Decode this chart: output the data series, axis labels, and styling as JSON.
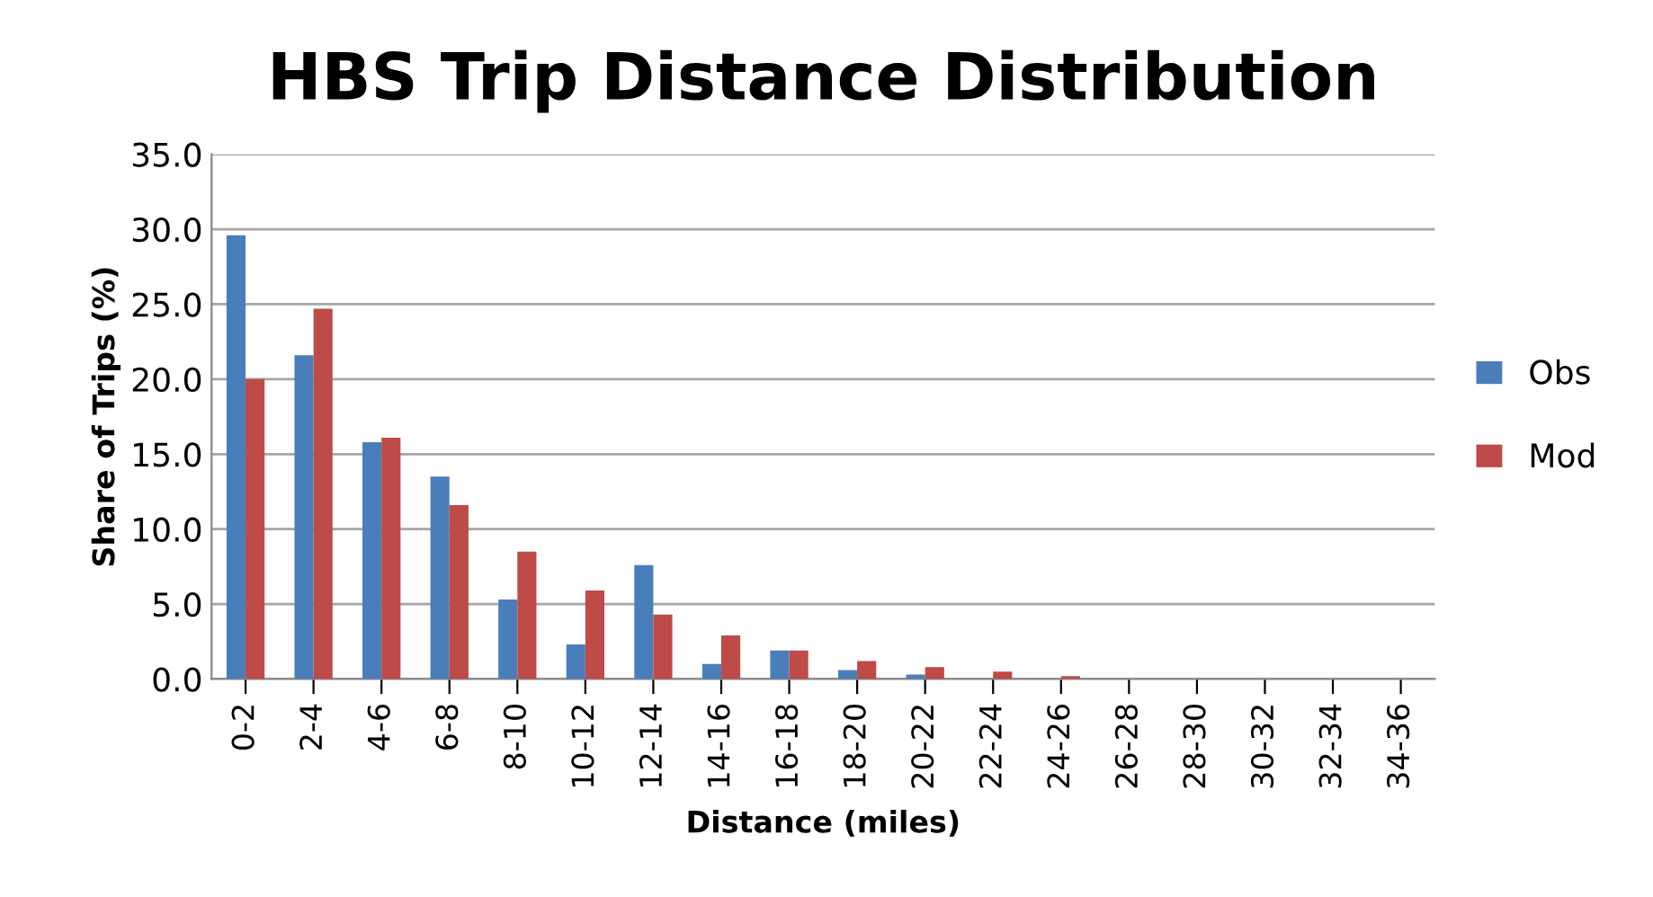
{
  "chart_data": {
    "type": "bar",
    "title": "HBS Trip Distance Distribution",
    "xlabel": "Distance (miles)",
    "ylabel": "Share of Trips (%)",
    "categories": [
      "0-2",
      "2-4",
      "4-6",
      "6-8",
      "8-10",
      "10-12",
      "12-14",
      "14-16",
      "16-18",
      "18-20",
      "20-22",
      "22-24",
      "24-26",
      "26-28",
      "28-30",
      "30-32",
      "32-34",
      "34-36"
    ],
    "series": [
      {
        "name": "Obs",
        "color": "#4a7ebb",
        "values": [
          29.6,
          21.6,
          15.8,
          13.5,
          5.3,
          2.3,
          7.6,
          1.0,
          1.9,
          0.6,
          0.3,
          0,
          0,
          0,
          0,
          0,
          0,
          0
        ]
      },
      {
        "name": "Mod",
        "color": "#be4b48",
        "values": [
          20.0,
          24.7,
          16.1,
          11.6,
          8.5,
          5.9,
          4.3,
          2.9,
          1.9,
          1.2,
          0.8,
          0.5,
          0.2,
          0,
          0,
          0,
          0,
          0
        ]
      }
    ],
    "ylim": [
      0,
      35
    ],
    "yticks": [
      {
        "value": 0,
        "label": "0.0"
      },
      {
        "value": 5,
        "label": "5.0"
      },
      {
        "value": 10,
        "label": "10.0"
      },
      {
        "value": 15,
        "label": "15.0"
      },
      {
        "value": 20,
        "label": "20.0"
      },
      {
        "value": 25,
        "label": "25.0"
      },
      {
        "value": 30,
        "label": "30.0"
      },
      {
        "value": 35,
        "label": "35.0"
      }
    ],
    "grid": "y",
    "legend": "right"
  }
}
